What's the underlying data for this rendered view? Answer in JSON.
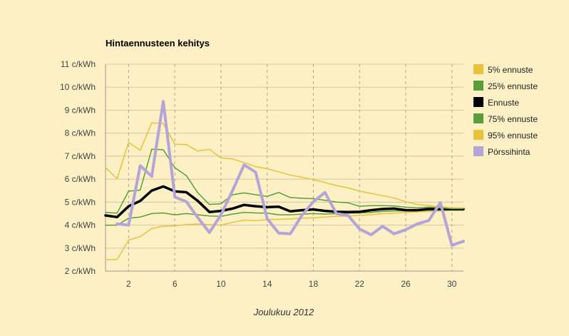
{
  "chart_data": {
    "type": "line",
    "title": "Hintaennusteen kehitys",
    "xlabel": "Joulukuu 2012",
    "ylabel": "",
    "xlim": [
      0,
      31
    ],
    "ylim": [
      2,
      11
    ],
    "x_ticks": [
      2,
      6,
      10,
      14,
      18,
      22,
      26,
      30
    ],
    "y_ticks": [
      2,
      3,
      4,
      5,
      6,
      7,
      8,
      9,
      10,
      11
    ],
    "y_unit": "c/kWh",
    "grid": {
      "horizontal": "solid",
      "vertical": "dashed"
    },
    "legend_position": "right",
    "x": [
      0,
      1,
      2,
      3,
      4,
      5,
      6,
      7,
      8,
      9,
      10,
      11,
      12,
      13,
      14,
      15,
      16,
      17,
      18,
      19,
      20,
      21,
      22,
      23,
      24,
      25,
      26,
      27,
      28,
      29,
      30,
      31
    ],
    "series": [
      {
        "name": "5% ennuste",
        "color": "#e8c23a",
        "width": 1.5,
        "values": [
          2.5,
          2.5,
          3.35,
          3.5,
          3.85,
          3.95,
          3.97,
          4.02,
          4.05,
          4.02,
          4.0,
          4.12,
          4.22,
          4.19,
          4.24,
          4.25,
          4.27,
          4.3,
          4.32,
          4.35,
          4.38,
          4.4,
          4.42,
          4.45,
          4.5,
          4.52,
          4.55,
          4.58,
          4.6,
          4.62,
          4.65,
          4.65
        ]
      },
      {
        "name": "25% ennuste",
        "color": "#5a9e3c",
        "width": 1.5,
        "values": [
          4.0,
          4.0,
          4.3,
          4.35,
          4.5,
          4.53,
          4.45,
          4.5,
          4.45,
          4.4,
          4.38,
          4.48,
          4.55,
          4.53,
          4.52,
          4.45,
          4.45,
          4.48,
          4.5,
          4.48,
          4.5,
          4.52,
          4.53,
          4.55,
          4.6,
          4.62,
          4.62,
          4.63,
          4.65,
          4.65,
          4.65,
          4.65
        ]
      },
      {
        "name": "Ennuste",
        "color": "#000000",
        "width": 3.5,
        "values": [
          4.42,
          4.35,
          4.82,
          5.05,
          5.5,
          5.68,
          5.47,
          5.43,
          5.05,
          4.57,
          4.62,
          4.72,
          4.88,
          4.82,
          4.78,
          4.8,
          4.6,
          4.65,
          4.68,
          4.62,
          4.58,
          4.57,
          4.58,
          4.65,
          4.7,
          4.72,
          4.65,
          4.65,
          4.7,
          4.7,
          4.7,
          4.7
        ]
      },
      {
        "name": "75% ennuste",
        "color": "#5a9e3c",
        "width": 1.5,
        "values": [
          4.55,
          4.52,
          5.48,
          5.52,
          7.3,
          7.28,
          6.5,
          6.15,
          5.4,
          4.9,
          4.93,
          5.32,
          5.4,
          5.32,
          5.25,
          5.42,
          5.2,
          5.17,
          5.15,
          5.08,
          5.0,
          4.97,
          4.82,
          4.85,
          4.85,
          4.83,
          4.78,
          4.75,
          4.78,
          4.75,
          4.72,
          4.72
        ]
      },
      {
        "name": "95% ennuste",
        "color": "#e8c23a",
        "width": 1.5,
        "values": [
          6.5,
          6.02,
          7.6,
          7.25,
          8.45,
          8.42,
          7.52,
          7.5,
          7.22,
          7.3,
          6.92,
          6.88,
          6.72,
          6.55,
          6.45,
          6.32,
          6.18,
          6.08,
          5.98,
          5.85,
          5.72,
          5.62,
          5.48,
          5.38,
          5.28,
          5.18,
          5.02,
          4.9,
          4.85,
          4.8,
          4.75,
          4.75
        ]
      },
      {
        "name": "Pörssihinta",
        "color": "#b4a4d8",
        "width": 4,
        "values": [
          null,
          4.05,
          4.0,
          6.58,
          6.12,
          9.38,
          5.22,
          5.02,
          4.32,
          3.68,
          4.45,
          5.5,
          6.62,
          6.3,
          4.28,
          3.65,
          3.62,
          4.42,
          5.02,
          5.42,
          4.5,
          4.42,
          3.83,
          3.58,
          3.95,
          3.62,
          3.8,
          4.05,
          4.2,
          4.98,
          3.12,
          3.3
        ]
      }
    ]
  }
}
